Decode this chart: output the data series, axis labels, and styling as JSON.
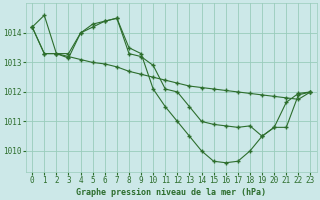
{
  "title": "Graphe pression niveau de la mer (hPa)",
  "background_color": "#cce8e8",
  "grid_color": "#99ccbb",
  "line_color": "#2d6e2d",
  "marker": "+",
  "xlim": [
    -0.5,
    23.5
  ],
  "ylim": [
    1009.3,
    1015.0
  ],
  "yticks": [
    1010,
    1011,
    1012,
    1013,
    1014
  ],
  "xticks": [
    0,
    1,
    2,
    3,
    4,
    5,
    6,
    7,
    8,
    9,
    10,
    11,
    12,
    13,
    14,
    15,
    16,
    17,
    18,
    19,
    20,
    21,
    22,
    23
  ],
  "series": [
    {
      "x": [
        0,
        1,
        2,
        3,
        4,
        5,
        6,
        7,
        8,
        9,
        10,
        11,
        12,
        13,
        14,
        15,
        16,
        17,
        18,
        19,
        20,
        21,
        22,
        23
      ],
      "y": [
        1014.2,
        1014.6,
        1013.3,
        1013.3,
        1014.0,
        1014.3,
        1014.4,
        1014.5,
        1013.3,
        1013.2,
        1012.9,
        1012.1,
        1012.0,
        1011.5,
        1011.0,
        1010.9,
        1010.85,
        1010.8,
        1010.85,
        1010.5,
        1010.8,
        1011.65,
        1011.95,
        1012.0
      ]
    },
    {
      "x": [
        0,
        1,
        2,
        3,
        4,
        5,
        6,
        7,
        8,
        9,
        10,
        11,
        12,
        13,
        14,
        15,
        16,
        17,
        18,
        19,
        20,
        21,
        22,
        23
      ],
      "y": [
        1014.2,
        1013.3,
        1013.3,
        1013.15,
        1014.0,
        1014.2,
        1014.4,
        1014.5,
        1013.5,
        1013.3,
        1012.1,
        1011.5,
        1011.0,
        1010.5,
        1010.0,
        1009.65,
        1009.6,
        1009.65,
        1010.0,
        1010.5,
        1010.8,
        1010.8,
        1011.9,
        1012.0
      ]
    },
    {
      "x": [
        0,
        1,
        2,
        3,
        4,
        5,
        6,
        7,
        8,
        9,
        10,
        11,
        12,
        13,
        14,
        15,
        16,
        17,
        18,
        19,
        20,
        21,
        22,
        23
      ],
      "y": [
        1014.2,
        1013.3,
        1013.3,
        1013.2,
        1013.1,
        1013.0,
        1012.95,
        1012.85,
        1012.7,
        1012.6,
        1012.5,
        1012.4,
        1012.3,
        1012.2,
        1012.15,
        1012.1,
        1012.05,
        1012.0,
        1011.95,
        1011.9,
        1011.85,
        1011.8,
        1011.75,
        1012.0
      ]
    }
  ]
}
